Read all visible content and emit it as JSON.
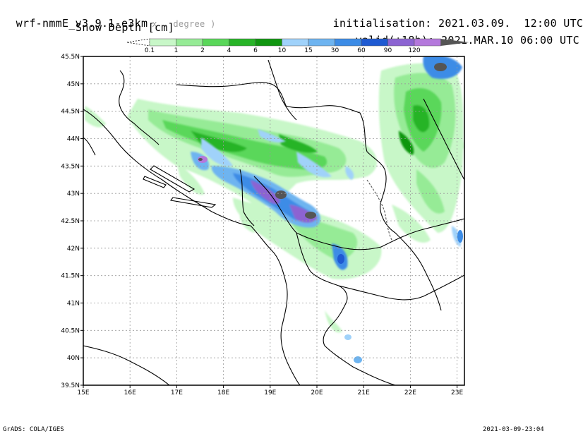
{
  "header": {
    "model": "wrf-nmmE_v3.9.1-e3km",
    "projection": "x . degree )",
    "variable": "Snow Depth [cm]",
    "init_label": "initialisation:",
    "init_value": "2021.03.09.  12:00 UTC",
    "valid_label": "valid(+18h):",
    "valid_value": "2021.MAR.10 06:00 UTC"
  },
  "colorbar": {
    "levels": [
      "0.1",
      "1",
      "2",
      "4",
      "6",
      "10",
      "15",
      "30",
      "60",
      "90",
      "120"
    ],
    "colors": [
      "#c8f7c8",
      "#96eb96",
      "#5ad75a",
      "#28b428",
      "#109610",
      "#a0d2fa",
      "#6eb4f0",
      "#3c8ce6",
      "#1e5ad2",
      "#8c64d2",
      "#b478dc",
      "#555555"
    ]
  },
  "map": {
    "lat_labels": [
      "45.5N",
      "45N",
      "44.5N",
      "44N",
      "43.5N",
      "43N",
      "42.5N",
      "42N",
      "41.5N",
      "41N",
      "40.5N",
      "40N",
      "39.5N"
    ],
    "lon_labels": [
      "15E",
      "16E",
      "17E",
      "18E",
      "19E",
      "20E",
      "21E",
      "22E",
      "23E"
    ]
  },
  "footer": {
    "left": "GrADS: COLA/IGES",
    "right": "2021-03-09-23:04"
  }
}
